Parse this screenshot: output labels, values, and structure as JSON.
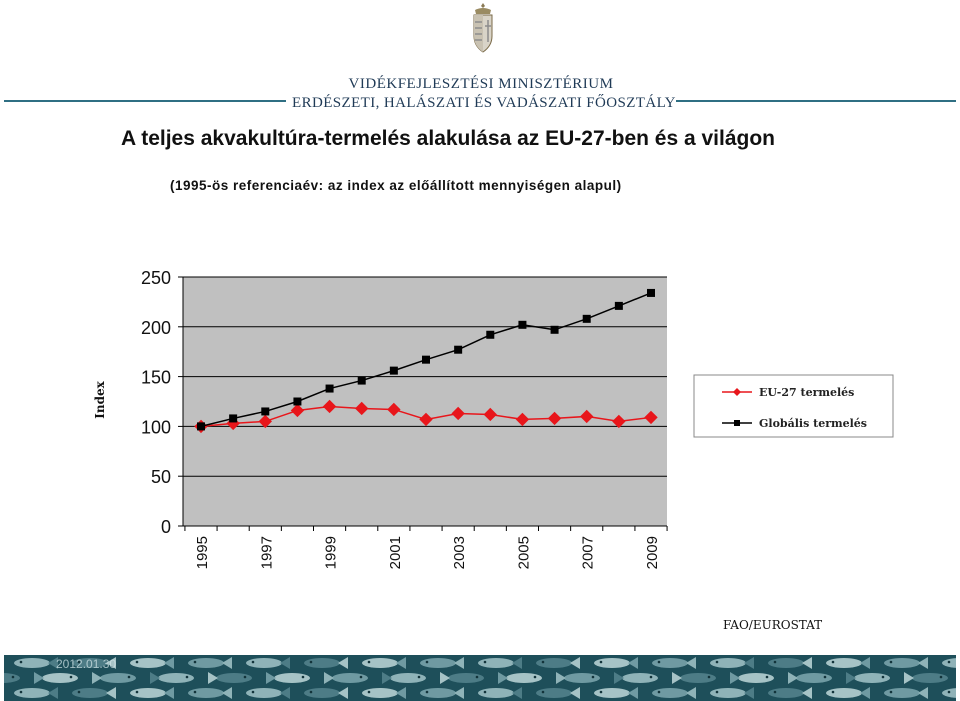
{
  "header": {
    "ministry_line1": "VIDÉKFEJLESZTÉSI MINISZTÉRIUM",
    "ministry_line2": "ERDÉSZETI, HALÁSZATI ÉS VADÁSZATI FŐOSZTÁLY"
  },
  "footer": {
    "source": "FAO/EUROSTAT",
    "date": "2012.01.30"
  },
  "colors": {
    "eu_series": "#e8161b",
    "global_series": "#000000",
    "plot_bg": "#c0c0c0",
    "rule": "#2f6f83",
    "banner": "#1e4f5a"
  },
  "chart_data": {
    "type": "line",
    "title": "A teljes akvakultúra-termelés alakulása az EU-27-ben és a világon",
    "subtitle": "(1995-ös referenciaév: az index az előállított mennyiségen alapul)",
    "xlabel": "",
    "ylabel": "Index",
    "ylim": [
      0,
      250
    ],
    "yticks": [
      0,
      50,
      100,
      150,
      200,
      250
    ],
    "x": [
      1995,
      1996,
      1997,
      1998,
      1999,
      2000,
      2001,
      2002,
      2003,
      2004,
      2005,
      2006,
      2007,
      2008,
      2009
    ],
    "xtick_labels": [
      "1995",
      "1997",
      "1999",
      "2001",
      "2003",
      "2005",
      "2007",
      "2009"
    ],
    "grid": true,
    "legend_position": "right",
    "series": [
      {
        "name": "EU-27 termelés",
        "marker": "diamond",
        "color": "#e8161b",
        "values": [
          100,
          103,
          105,
          116,
          120,
          118,
          117,
          107,
          113,
          112,
          107,
          108,
          110,
          105,
          109
        ]
      },
      {
        "name": "Globális termelés",
        "marker": "square",
        "color": "#000000",
        "values": [
          100,
          108,
          115,
          125,
          138,
          146,
          156,
          167,
          177,
          192,
          202,
          197,
          208,
          221,
          234
        ]
      }
    ]
  }
}
